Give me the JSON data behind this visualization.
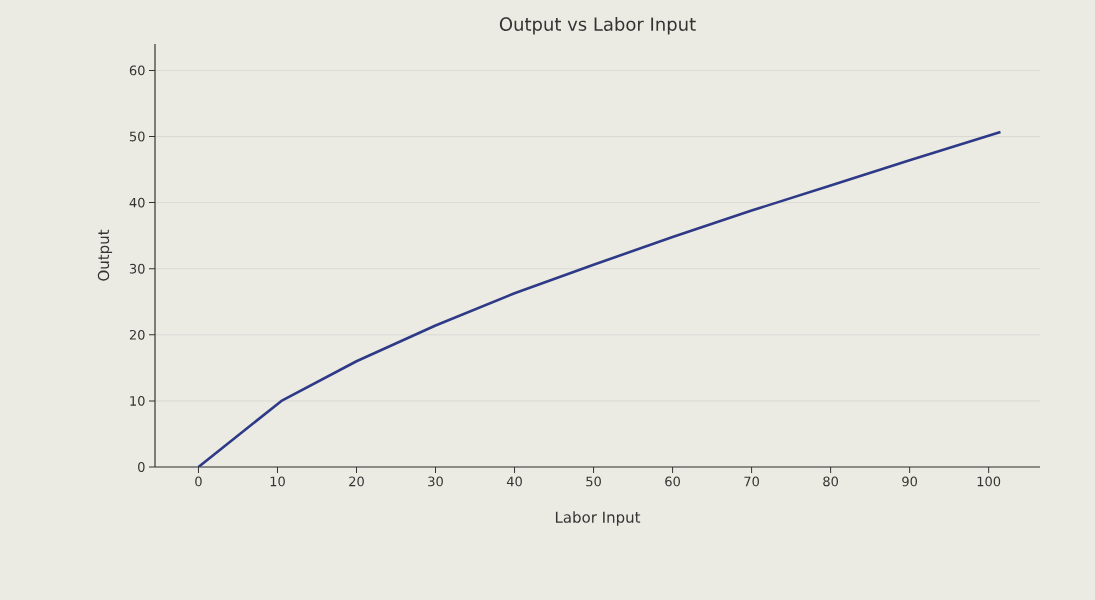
{
  "chart_data": {
    "type": "line",
    "title": "Output vs Labor Input",
    "xlabel": "Labor Input",
    "ylabel": "Output",
    "x": [
      0,
      10.5,
      20,
      30,
      40,
      50,
      60,
      70,
      80,
      90,
      101.5
    ],
    "series": [
      {
        "color": "#2e3a87",
        "values": [
          0,
          10,
          16,
          21.4,
          26.3,
          30.6,
          34.8,
          38.8,
          42.6,
          46.4,
          50.7
        ]
      }
    ],
    "xlim": [
      -5.5,
      106.5
    ],
    "ylim": [
      0,
      64
    ],
    "xticks": [
      0,
      10,
      20,
      30,
      40,
      50,
      60,
      70,
      80,
      90,
      100
    ],
    "yticks": [
      0,
      10,
      20,
      30,
      40,
      50,
      60
    ],
    "grid": "y",
    "marker": "none",
    "line_style": "solid"
  }
}
